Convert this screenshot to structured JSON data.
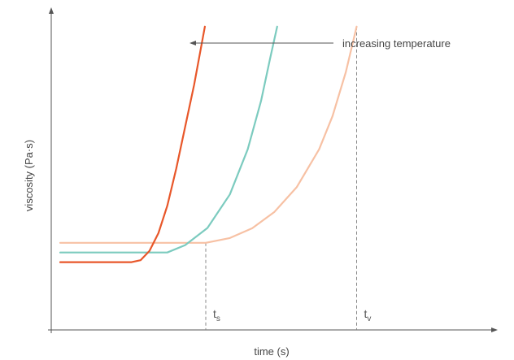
{
  "chart_data": {
    "type": "line",
    "title": "",
    "xlabel": "time (s)",
    "ylabel": "viscosity (Pa·s)",
    "xlim": [
      0,
      100
    ],
    "ylim": [
      0,
      100
    ],
    "ticks": "none",
    "grid": false,
    "annotation": "increasing temperature",
    "series": [
      {
        "color": "#f7c1a4",
        "x": [
          2.0,
          10,
          20,
          30,
          34.6,
          40,
          45,
          50,
          55,
          60,
          63,
          66,
          68.4
        ],
        "y": [
          27.0,
          27.0,
          27.0,
          27.0,
          27.0,
          28.5,
          31.5,
          36.6,
          44.3,
          56.0,
          66.3,
          80.0,
          94.0
        ]
      },
      {
        "color": "#7ccbbf",
        "x": [
          2.0,
          10,
          20,
          26,
          30,
          35,
          40,
          44,
          47,
          49,
          50.6
        ],
        "y": [
          24.0,
          24.0,
          24.0,
          24.0,
          26.3,
          31.6,
          42.0,
          56.0,
          71.0,
          84.0,
          94.0
        ]
      },
      {
        "color": "#e8572a",
        "x": [
          2.0,
          10,
          18,
          20,
          22,
          24,
          26,
          28,
          30,
          32,
          34.4
        ],
        "y": [
          21.0,
          21.0,
          21.0,
          21.6,
          24.5,
          30.0,
          38.5,
          50.0,
          63.0,
          76.0,
          94.0
        ]
      }
    ],
    "markers": [
      {
        "label": "t",
        "sub": "s",
        "x": 34.6
      },
      {
        "label": "t",
        "sub": "v",
        "x": 68.4
      }
    ]
  }
}
